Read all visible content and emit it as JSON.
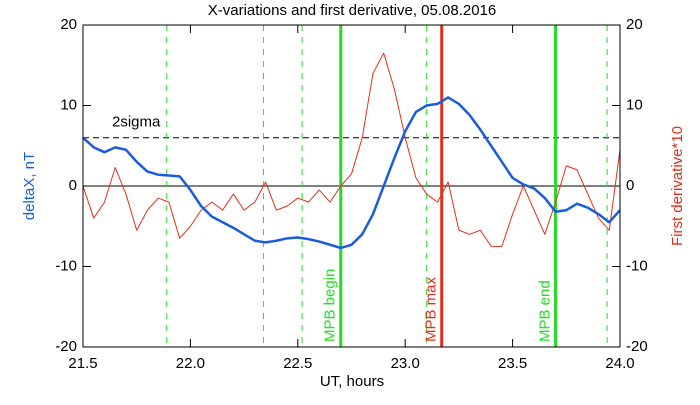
{
  "chart_data": {
    "type": "line",
    "title": "X-variations and first derivative, 05.08.2016",
    "x_label": "UT, hours",
    "y_label": "deltaX, nT",
    "y2_label": "First derivative*10",
    "xlim": [
      21.5,
      24.0
    ],
    "xticks": [
      21.5,
      {
        "value": 22,
        "label": "22.0"
      },
      22.5,
      {
        "value": 23,
        "label": "23.0"
      },
      23.5,
      {
        "value": 24,
        "label": "24.0"
      }
    ],
    "ylim": [
      -20,
      20
    ],
    "yticks": [
      -20,
      -10,
      0,
      10,
      20
    ],
    "y2lim": [
      -20,
      20
    ],
    "y2ticks": [
      -20,
      -10,
      0,
      10,
      20
    ],
    "x": [
      21.5,
      21.55,
      21.6,
      21.65,
      21.7,
      21.75,
      21.8,
      21.85,
      21.9,
      21.95,
      22.0,
      22.05,
      22.1,
      22.15,
      22.2,
      22.25,
      22.3,
      22.35,
      22.4,
      22.45,
      22.5,
      22.55,
      22.6,
      22.65,
      22.7,
      22.75,
      22.8,
      22.85,
      22.9,
      22.95,
      23.0,
      23.05,
      23.1,
      23.15,
      23.2,
      23.25,
      23.3,
      23.35,
      23.4,
      23.45,
      23.5,
      23.55,
      23.6,
      23.65,
      23.7,
      23.75,
      23.8,
      23.85,
      23.9,
      23.95,
      24.0
    ],
    "series": [
      {
        "name": "deltaX, nT",
        "color": "#1a5ce0",
        "width": 2.5,
        "values": [
          6,
          4.8,
          4.2,
          4.8,
          4.5,
          3,
          1.8,
          1.4,
          1.3,
          1.2,
          -0.5,
          -2.5,
          -3.8,
          -4.5,
          -5.2,
          -6,
          -6.8,
          -7,
          -6.8,
          -6.5,
          -6.4,
          -6.6,
          -6.9,
          -7.3,
          -7.7,
          -7.3,
          -6,
          -3.5,
          0,
          3.5,
          6.8,
          9.2,
          10,
          10.2,
          11,
          10.2,
          8.8,
          7,
          5,
          3,
          1,
          0.2,
          -0.3,
          -1.5,
          -3.2,
          -3,
          -2.2,
          -2.7,
          -3.5,
          -4.5,
          -3
        ]
      },
      {
        "name": "First derivative*10",
        "color": "#e0301a",
        "width": 1,
        "axis": "y2",
        "values": [
          0,
          -4,
          -2,
          2.3,
          -1,
          -5.5,
          -3,
          -1.5,
          -2,
          -6.5,
          -5,
          -3,
          -2,
          -3,
          -1,
          -3,
          -2,
          0.5,
          -3,
          -2.5,
          -1.5,
          -2,
          -0.5,
          -2,
          0,
          1.5,
          6,
          14,
          16.5,
          12,
          6,
          1,
          -1,
          -2,
          0.5,
          -5.5,
          -6,
          -5.5,
          -7.5,
          -7.5,
          -3.5,
          0,
          -3,
          -6,
          -2,
          2.5,
          2,
          -1,
          -4,
          -5.5,
          4.5
        ]
      }
    ],
    "hlines": [
      {
        "y": 6,
        "label": "2sigma",
        "dashed": true
      },
      {
        "y": 0,
        "dashed": false
      }
    ],
    "vlines": [
      {
        "x": 21.89,
        "color": "#22dd22",
        "dashed": true
      },
      {
        "x": 22.34,
        "color": "#22dd22",
        "dashed": true
      },
      {
        "x": 22.52,
        "color": "#22dd22",
        "dashed": true
      },
      {
        "x": 22.7,
        "color": "#22dd22",
        "dashed": false,
        "label": "MPB begin"
      },
      {
        "x": 23.1,
        "color": "#22dd22",
        "dashed": true
      },
      {
        "x": 23.17,
        "color": "#e0301a",
        "dashed": false,
        "label": "MPB max"
      },
      {
        "x": 23.7,
        "color": "#22dd22",
        "dashed": false,
        "label": "MPB end"
      },
      {
        "x": 23.94,
        "color": "#22dd22",
        "dashed": true
      }
    ]
  }
}
